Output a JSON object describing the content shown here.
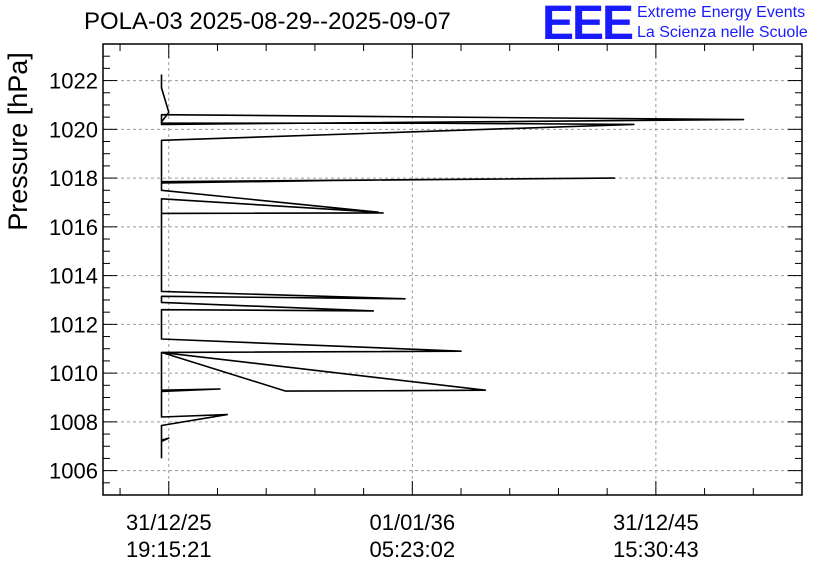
{
  "title": "POLA-03 2025-08-29--2025-09-07",
  "logo": {
    "mark": "EEE",
    "line1": "Extreme Energy Events",
    "line2": "La Scienza nelle Scuole",
    "color": "#1a1aff"
  },
  "chart_data": {
    "type": "line",
    "title": "POLA-03 2025-08-29--2025-09-07",
    "ylabel": "Pressure [hPa]",
    "xlabel": "",
    "ylim": [
      1005,
      1023.5
    ],
    "yticks": [
      1006,
      1008,
      1010,
      1012,
      1014,
      1016,
      1018,
      1020,
      1022
    ],
    "xlim": [
      -0.27,
      2.6
    ],
    "xticks": [
      {
        "x": 0,
        "date": "31/12/25",
        "time": "19:15:21"
      },
      {
        "x": 1,
        "date": "01/01/36",
        "time": "05:23:02"
      },
      {
        "x": 2,
        "date": "31/12/45",
        "time": "15:30:43"
      }
    ],
    "grid": true,
    "series": [
      {
        "x": [
          -0.03,
          -0.03,
          0.0,
          -0.03,
          -0.03,
          0.24,
          -0.03,
          -0.03,
          0.21,
          -0.03,
          -0.03,
          1.3,
          0.94,
          0.48,
          -0.03,
          -0.03,
          1.2,
          -0.03,
          -0.03,
          0.84,
          -0.03,
          -0.03,
          0.97,
          -0.03,
          -0.03,
          0.88,
          -0.03,
          -0.03,
          0.86,
          -0.03,
          -0.03,
          1.83,
          0.67,
          -0.03,
          -0.03,
          1.91,
          1.1,
          -0.03,
          -0.03,
          2.36,
          -0.03,
          -0.03,
          0.0,
          -0.03,
          -0.03
        ],
        "y": [
          1006.5,
          1007.25,
          1007.33,
          1007.2,
          1007.85,
          1008.3,
          1008.2,
          1009.25,
          1009.35,
          1009.3,
          1010.85,
          1009.3,
          1009.28,
          1009.26,
          1010.85,
          1010.85,
          1010.9,
          1011.4,
          1012.6,
          1012.55,
          1012.9,
          1013.15,
          1013.05,
          1013.35,
          1016.55,
          1016.57,
          1016.55,
          1017.15,
          1016.6,
          1017.5,
          1017.85,
          1018.0,
          1017.9,
          1017.8,
          1019.55,
          1020.2,
          1020.25,
          1020.25,
          1020.6,
          1020.4,
          1020.2,
          1020.3,
          1020.7,
          1021.7,
          1022.25
        ]
      }
    ]
  }
}
